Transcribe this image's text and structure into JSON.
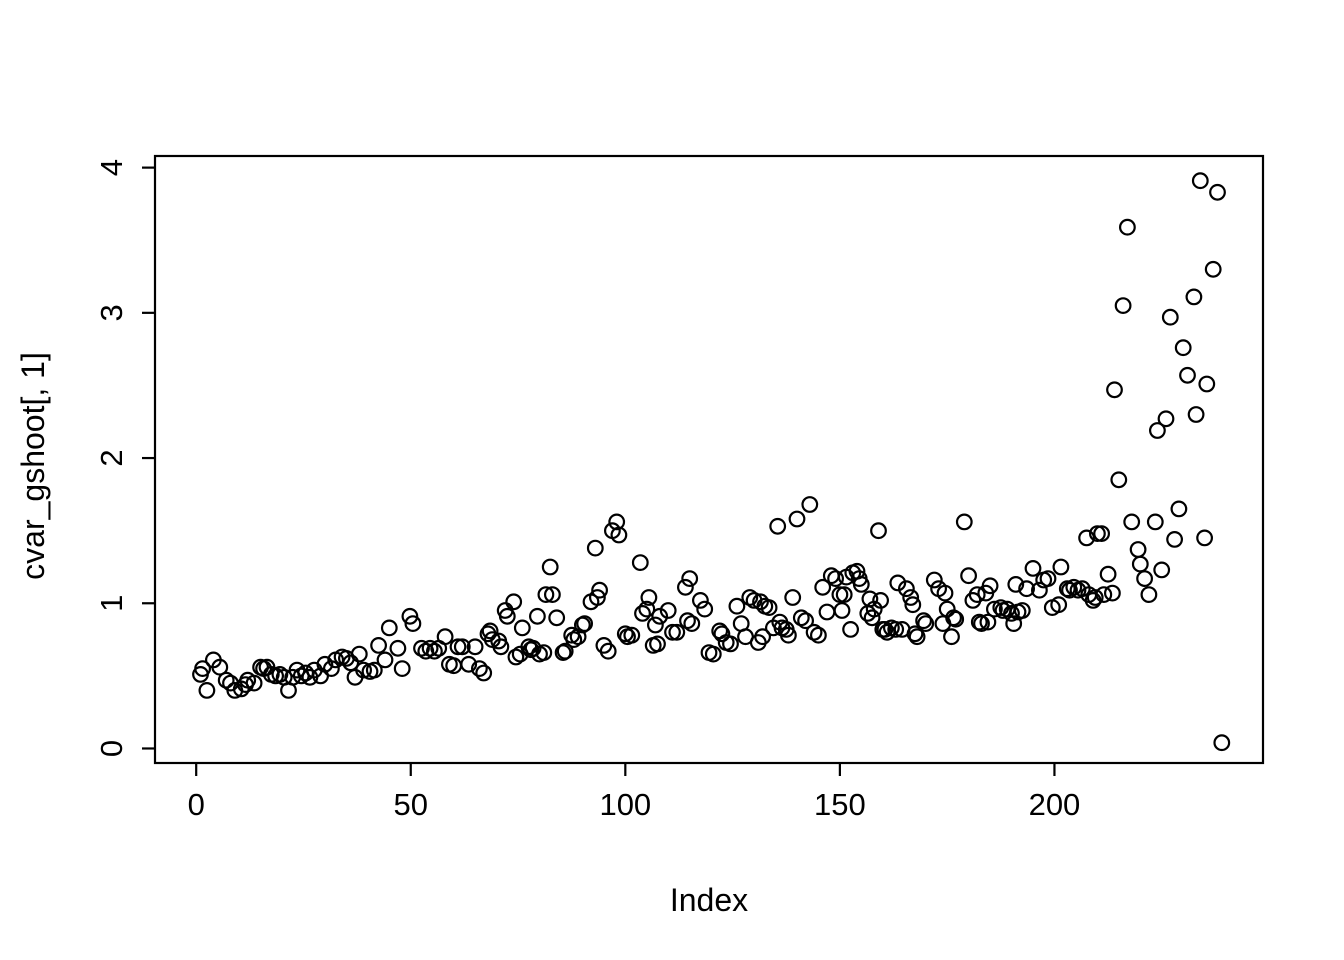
{
  "chart_data": {
    "type": "scatter",
    "title": "",
    "xlabel": "Index",
    "ylabel": "cvar_gshoot[, 1]",
    "marker": "open-circle",
    "marker_color": "#000000",
    "background_color": "#ffffff",
    "grid": false,
    "legend": false,
    "x_ticks": [
      0,
      50,
      100,
      150,
      200
    ],
    "y_ticks": [
      0,
      1,
      2,
      3,
      4
    ],
    "xlim": [
      -9.6,
      248.6
    ],
    "ylim": [
      -0.1,
      4.08
    ],
    "points": [
      [
        1,
        0.51
      ],
      [
        1.5,
        0.55
      ],
      [
        2.5,
        0.4
      ],
      [
        4,
        0.61
      ],
      [
        5.5,
        0.56
      ],
      [
        7,
        0.47
      ],
      [
        8,
        0.45
      ],
      [
        9,
        0.4
      ],
      [
        10.5,
        0.41
      ],
      [
        11.5,
        0.44
      ],
      [
        12,
        0.47
      ],
      [
        13.5,
        0.45
      ],
      [
        15,
        0.56
      ],
      [
        15.7,
        0.55
      ],
      [
        16.5,
        0.56
      ],
      [
        17.5,
        0.51
      ],
      [
        18.5,
        0.5
      ],
      [
        19.5,
        0.51
      ],
      [
        20.5,
        0.49
      ],
      [
        21.5,
        0.4
      ],
      [
        22.5,
        0.49
      ],
      [
        23.5,
        0.54
      ],
      [
        24.5,
        0.5
      ],
      [
        25.5,
        0.52
      ],
      [
        26.5,
        0.49
      ],
      [
        27.5,
        0.54
      ],
      [
        29,
        0.5
      ],
      [
        30,
        0.58
      ],
      [
        31.5,
        0.55
      ],
      [
        32.5,
        0.61
      ],
      [
        34,
        0.63
      ],
      [
        35,
        0.62
      ],
      [
        36,
        0.59
      ],
      [
        37,
        0.49
      ],
      [
        38,
        0.65
      ],
      [
        39,
        0.54
      ],
      [
        40.5,
        0.53
      ],
      [
        41.5,
        0.54
      ],
      [
        42.5,
        0.71
      ],
      [
        44,
        0.61
      ],
      [
        45,
        0.83
      ],
      [
        47,
        0.69
      ],
      [
        48,
        0.55
      ],
      [
        49.8,
        0.91
      ],
      [
        50.5,
        0.86
      ],
      [
        52.5,
        0.69
      ],
      [
        53.5,
        0.67
      ],
      [
        54.5,
        0.69
      ],
      [
        55.5,
        0.67
      ],
      [
        56.5,
        0.69
      ],
      [
        58,
        0.77
      ],
      [
        59,
        0.58
      ],
      [
        60,
        0.57
      ],
      [
        61,
        0.7
      ],
      [
        62,
        0.7
      ],
      [
        63.5,
        0.58
      ],
      [
        65,
        0.7
      ],
      [
        66,
        0.55
      ],
      [
        67,
        0.52
      ],
      [
        68,
        0.79
      ],
      [
        68.5,
        0.81
      ],
      [
        69,
        0.75
      ],
      [
        70.5,
        0.74
      ],
      [
        71,
        0.7
      ],
      [
        72,
        0.95
      ],
      [
        72.5,
        0.91
      ],
      [
        74,
        1.01
      ],
      [
        74.5,
        0.63
      ],
      [
        75.5,
        0.65
      ],
      [
        76,
        0.83
      ],
      [
        77.5,
        0.7
      ],
      [
        78,
        0.68
      ],
      [
        78.5,
        0.69
      ],
      [
        79.5,
        0.91
      ],
      [
        80,
        0.65
      ],
      [
        81,
        0.66
      ],
      [
        81.5,
        1.06
      ],
      [
        82.5,
        1.25
      ],
      [
        83,
        1.06
      ],
      [
        84,
        0.9
      ],
      [
        85.5,
        0.66
      ],
      [
        86,
        0.67
      ],
      [
        87.5,
        0.78
      ],
      [
        88,
        0.75
      ],
      [
        89,
        0.77
      ],
      [
        90,
        0.85
      ],
      [
        90.5,
        0.86
      ],
      [
        92,
        1.01
      ],
      [
        93,
        1.38
      ],
      [
        93.5,
        1.04
      ],
      [
        94,
        1.09
      ],
      [
        95,
        0.71
      ],
      [
        96,
        0.67
      ],
      [
        97,
        1.5
      ],
      [
        98,
        1.56
      ],
      [
        98.5,
        1.47
      ],
      [
        100,
        0.79
      ],
      [
        100.5,
        0.77
      ],
      [
        101.5,
        0.78
      ],
      [
        103.5,
        1.28
      ],
      [
        104,
        0.93
      ],
      [
        105,
        0.96
      ],
      [
        105.5,
        1.04
      ],
      [
        106.5,
        0.71
      ],
      [
        107,
        0.85
      ],
      [
        107.5,
        0.72
      ],
      [
        108,
        0.91
      ],
      [
        110,
        0.95
      ],
      [
        111,
        0.8
      ],
      [
        112,
        0.8
      ],
      [
        114,
        1.11
      ],
      [
        114.5,
        0.88
      ],
      [
        115,
        1.17
      ],
      [
        115.5,
        0.86
      ],
      [
        117.5,
        1.02
      ],
      [
        118.5,
        0.96
      ],
      [
        119.5,
        0.66
      ],
      [
        120.5,
        0.65
      ],
      [
        122,
        0.81
      ],
      [
        122.5,
        0.79
      ],
      [
        123.5,
        0.73
      ],
      [
        124.5,
        0.72
      ],
      [
        126,
        0.98
      ],
      [
        127,
        0.86
      ],
      [
        128,
        0.77
      ],
      [
        129,
        1.04
      ],
      [
        130,
        1.02
      ],
      [
        131,
        0.73
      ],
      [
        131.5,
        1.01
      ],
      [
        132,
        0.77
      ],
      [
        132.5,
        0.98
      ],
      [
        133.5,
        0.97
      ],
      [
        134.5,
        0.83
      ],
      [
        135.5,
        1.53
      ],
      [
        136,
        0.87
      ],
      [
        136.5,
        0.83
      ],
      [
        137.5,
        0.82
      ],
      [
        138,
        0.78
      ],
      [
        139,
        1.04
      ],
      [
        140,
        1.58
      ],
      [
        141,
        0.9
      ],
      [
        142,
        0.88
      ],
      [
        143,
        1.68
      ],
      [
        144,
        0.8
      ],
      [
        145,
        0.78
      ],
      [
        146,
        1.11
      ],
      [
        147,
        0.94
      ],
      [
        148,
        1.19
      ],
      [
        149,
        1.17
      ],
      [
        150,
        1.06
      ],
      [
        150.5,
        0.95
      ],
      [
        151,
        1.06
      ],
      [
        151.5,
        1.18
      ],
      [
        152.5,
        0.82
      ],
      [
        153,
        1.21
      ],
      [
        154,
        1.22
      ],
      [
        154.5,
        1.17
      ],
      [
        155,
        1.13
      ],
      [
        156.5,
        0.93
      ],
      [
        157,
        1.03
      ],
      [
        157.5,
        0.9
      ],
      [
        158,
        0.96
      ],
      [
        159,
        1.5
      ],
      [
        159.5,
        1.02
      ],
      [
        160,
        0.82
      ],
      [
        160.5,
        0.82
      ],
      [
        161,
        0.8
      ],
      [
        162,
        0.83
      ],
      [
        163,
        0.82
      ],
      [
        163.5,
        1.14
      ],
      [
        164.5,
        0.82
      ],
      [
        165.5,
        1.1
      ],
      [
        166.5,
        1.04
      ],
      [
        167,
        0.99
      ],
      [
        167.5,
        0.79
      ],
      [
        168,
        0.77
      ],
      [
        169.5,
        0.88
      ],
      [
        170,
        0.86
      ],
      [
        172,
        1.16
      ],
      [
        173,
        1.1
      ],
      [
        174,
        0.86
      ],
      [
        174.5,
        1.07
      ],
      [
        175,
        0.96
      ],
      [
        176,
        0.77
      ],
      [
        176.5,
        0.9
      ],
      [
        177,
        0.89
      ],
      [
        179,
        1.56
      ],
      [
        180,
        1.19
      ],
      [
        181,
        1.02
      ],
      [
        182,
        1.06
      ],
      [
        182.5,
        0.87
      ],
      [
        183,
        0.86
      ],
      [
        184,
        1.07
      ],
      [
        184.5,
        0.87
      ],
      [
        185,
        1.12
      ],
      [
        186,
        0.96
      ],
      [
        187.5,
        0.97
      ],
      [
        188,
        0.95
      ],
      [
        189,
        0.96
      ],
      [
        190,
        0.93
      ],
      [
        190.5,
        0.86
      ],
      [
        191,
        1.13
      ],
      [
        191.5,
        0.94
      ],
      [
        192.5,
        0.95
      ],
      [
        193.5,
        1.1
      ],
      [
        195,
        1.24
      ],
      [
        196.5,
        1.09
      ],
      [
        197.5,
        1.16
      ],
      [
        198.5,
        1.17
      ],
      [
        199.5,
        0.97
      ],
      [
        201,
        0.99
      ],
      [
        201.5,
        1.25
      ],
      [
        203,
        1.1
      ],
      [
        203.5,
        1.09
      ],
      [
        204.5,
        1.11
      ],
      [
        205.5,
        1.09
      ],
      [
        206.5,
        1.1
      ],
      [
        207.5,
        1.45
      ],
      [
        208,
        1.06
      ],
      [
        209,
        1.02
      ],
      [
        209.5,
        1.04
      ],
      [
        210,
        1.48
      ],
      [
        211,
        1.48
      ],
      [
        211.5,
        1.06
      ],
      [
        212.5,
        1.2
      ],
      [
        213.5,
        1.07
      ],
      [
        214,
        2.47
      ],
      [
        215,
        1.85
      ],
      [
        216,
        3.05
      ],
      [
        217,
        3.59
      ],
      [
        218,
        1.56
      ],
      [
        219.5,
        1.37
      ],
      [
        220,
        1.27
      ],
      [
        221,
        1.17
      ],
      [
        222,
        1.06
      ],
      [
        223.5,
        1.56
      ],
      [
        224,
        2.19
      ],
      [
        225,
        1.23
      ],
      [
        226,
        2.27
      ],
      [
        227,
        2.97
      ],
      [
        228,
        1.44
      ],
      [
        229,
        1.65
      ],
      [
        230,
        2.76
      ],
      [
        231,
        2.57
      ],
      [
        232.5,
        3.11
      ],
      [
        233,
        2.3
      ],
      [
        234,
        3.91
      ],
      [
        235,
        1.45
      ],
      [
        235.5,
        2.51
      ],
      [
        237,
        3.3
      ],
      [
        238,
        3.83
      ],
      [
        239,
        0.04
      ]
    ]
  }
}
